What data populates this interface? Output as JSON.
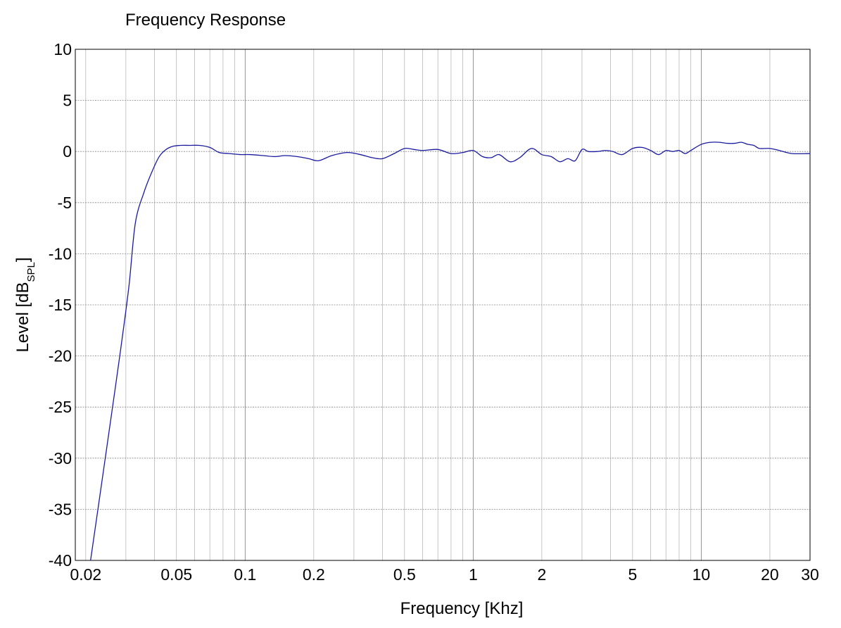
{
  "chart_data": {
    "type": "line",
    "title": "Frequency Response",
    "xlabel": "Frequency [Khz]",
    "ylabel_main": "Level [dB",
    "ylabel_sub": "SPL",
    "ylabel_close": "]",
    "x_scale": "log",
    "xlim": [
      0.018,
      30
    ],
    "ylim": [
      -40,
      10
    ],
    "x_ticks": [
      0.02,
      0.05,
      0.1,
      0.2,
      0.5,
      1,
      2,
      5,
      10,
      20,
      30
    ],
    "x_tick_labels": [
      "0.02",
      "0.05",
      "0.1",
      "0.2",
      "0.5",
      "1",
      "2",
      "5",
      "10",
      "20",
      "30"
    ],
    "y_ticks": [
      10,
      5,
      0,
      -5,
      -10,
      -15,
      -20,
      -25,
      -30,
      -35,
      -40
    ],
    "y_tick_labels": [
      "10",
      "5",
      "0",
      "-5",
      "-10",
      "-15",
      "-20",
      "-25",
      "-30",
      "-35",
      "-40"
    ],
    "grid": true,
    "line_color": "#1a1aa0",
    "series": [
      {
        "x": [
          0.021,
          0.024,
          0.027,
          0.029,
          0.031,
          0.033,
          0.036,
          0.039,
          0.042,
          0.045,
          0.048,
          0.052,
          0.057,
          0.063,
          0.07,
          0.077,
          0.085,
          0.095,
          0.105,
          0.12,
          0.135,
          0.15,
          0.17,
          0.19,
          0.21,
          0.24,
          0.28,
          0.32,
          0.36,
          0.4,
          0.45,
          0.5,
          0.55,
          0.6,
          0.7,
          0.8,
          0.9,
          1.0,
          1.1,
          1.2,
          1.3,
          1.45,
          1.6,
          1.8,
          2.0,
          2.2,
          2.4,
          2.6,
          2.8,
          3.0,
          3.2,
          3.5,
          3.8,
          4.1,
          4.5,
          5.0,
          5.5,
          6.0,
          6.5,
          7.0,
          7.5,
          8.0,
          8.5,
          9.0,
          10,
          11,
          12,
          13,
          14,
          15,
          16,
          17,
          18,
          20,
          22,
          25,
          30
        ],
        "y": [
          -40,
          -31,
          -23,
          -18,
          -13,
          -7,
          -4,
          -2,
          -0.5,
          0.2,
          0.5,
          0.6,
          0.6,
          0.6,
          0.4,
          -0.1,
          -0.2,
          -0.3,
          -0.3,
          -0.4,
          -0.5,
          -0.4,
          -0.5,
          -0.7,
          -0.9,
          -0.4,
          -0.1,
          -0.3,
          -0.6,
          -0.7,
          -0.2,
          0.3,
          0.2,
          0.1,
          0.2,
          -0.2,
          -0.1,
          0.1,
          -0.5,
          -0.6,
          -0.3,
          -1.0,
          -0.6,
          0.3,
          -0.3,
          -0.5,
          -1.0,
          -0.7,
          -0.9,
          0.2,
          0.0,
          0.0,
          0.1,
          0.0,
          -0.3,
          0.3,
          0.4,
          0.1,
          -0.3,
          0.1,
          0.0,
          0.1,
          -0.2,
          0.1,
          0.7,
          0.9,
          0.9,
          0.8,
          0.8,
          0.9,
          0.7,
          0.6,
          0.3,
          0.3,
          0.1,
          -0.2,
          -0.2
        ]
      }
    ]
  }
}
